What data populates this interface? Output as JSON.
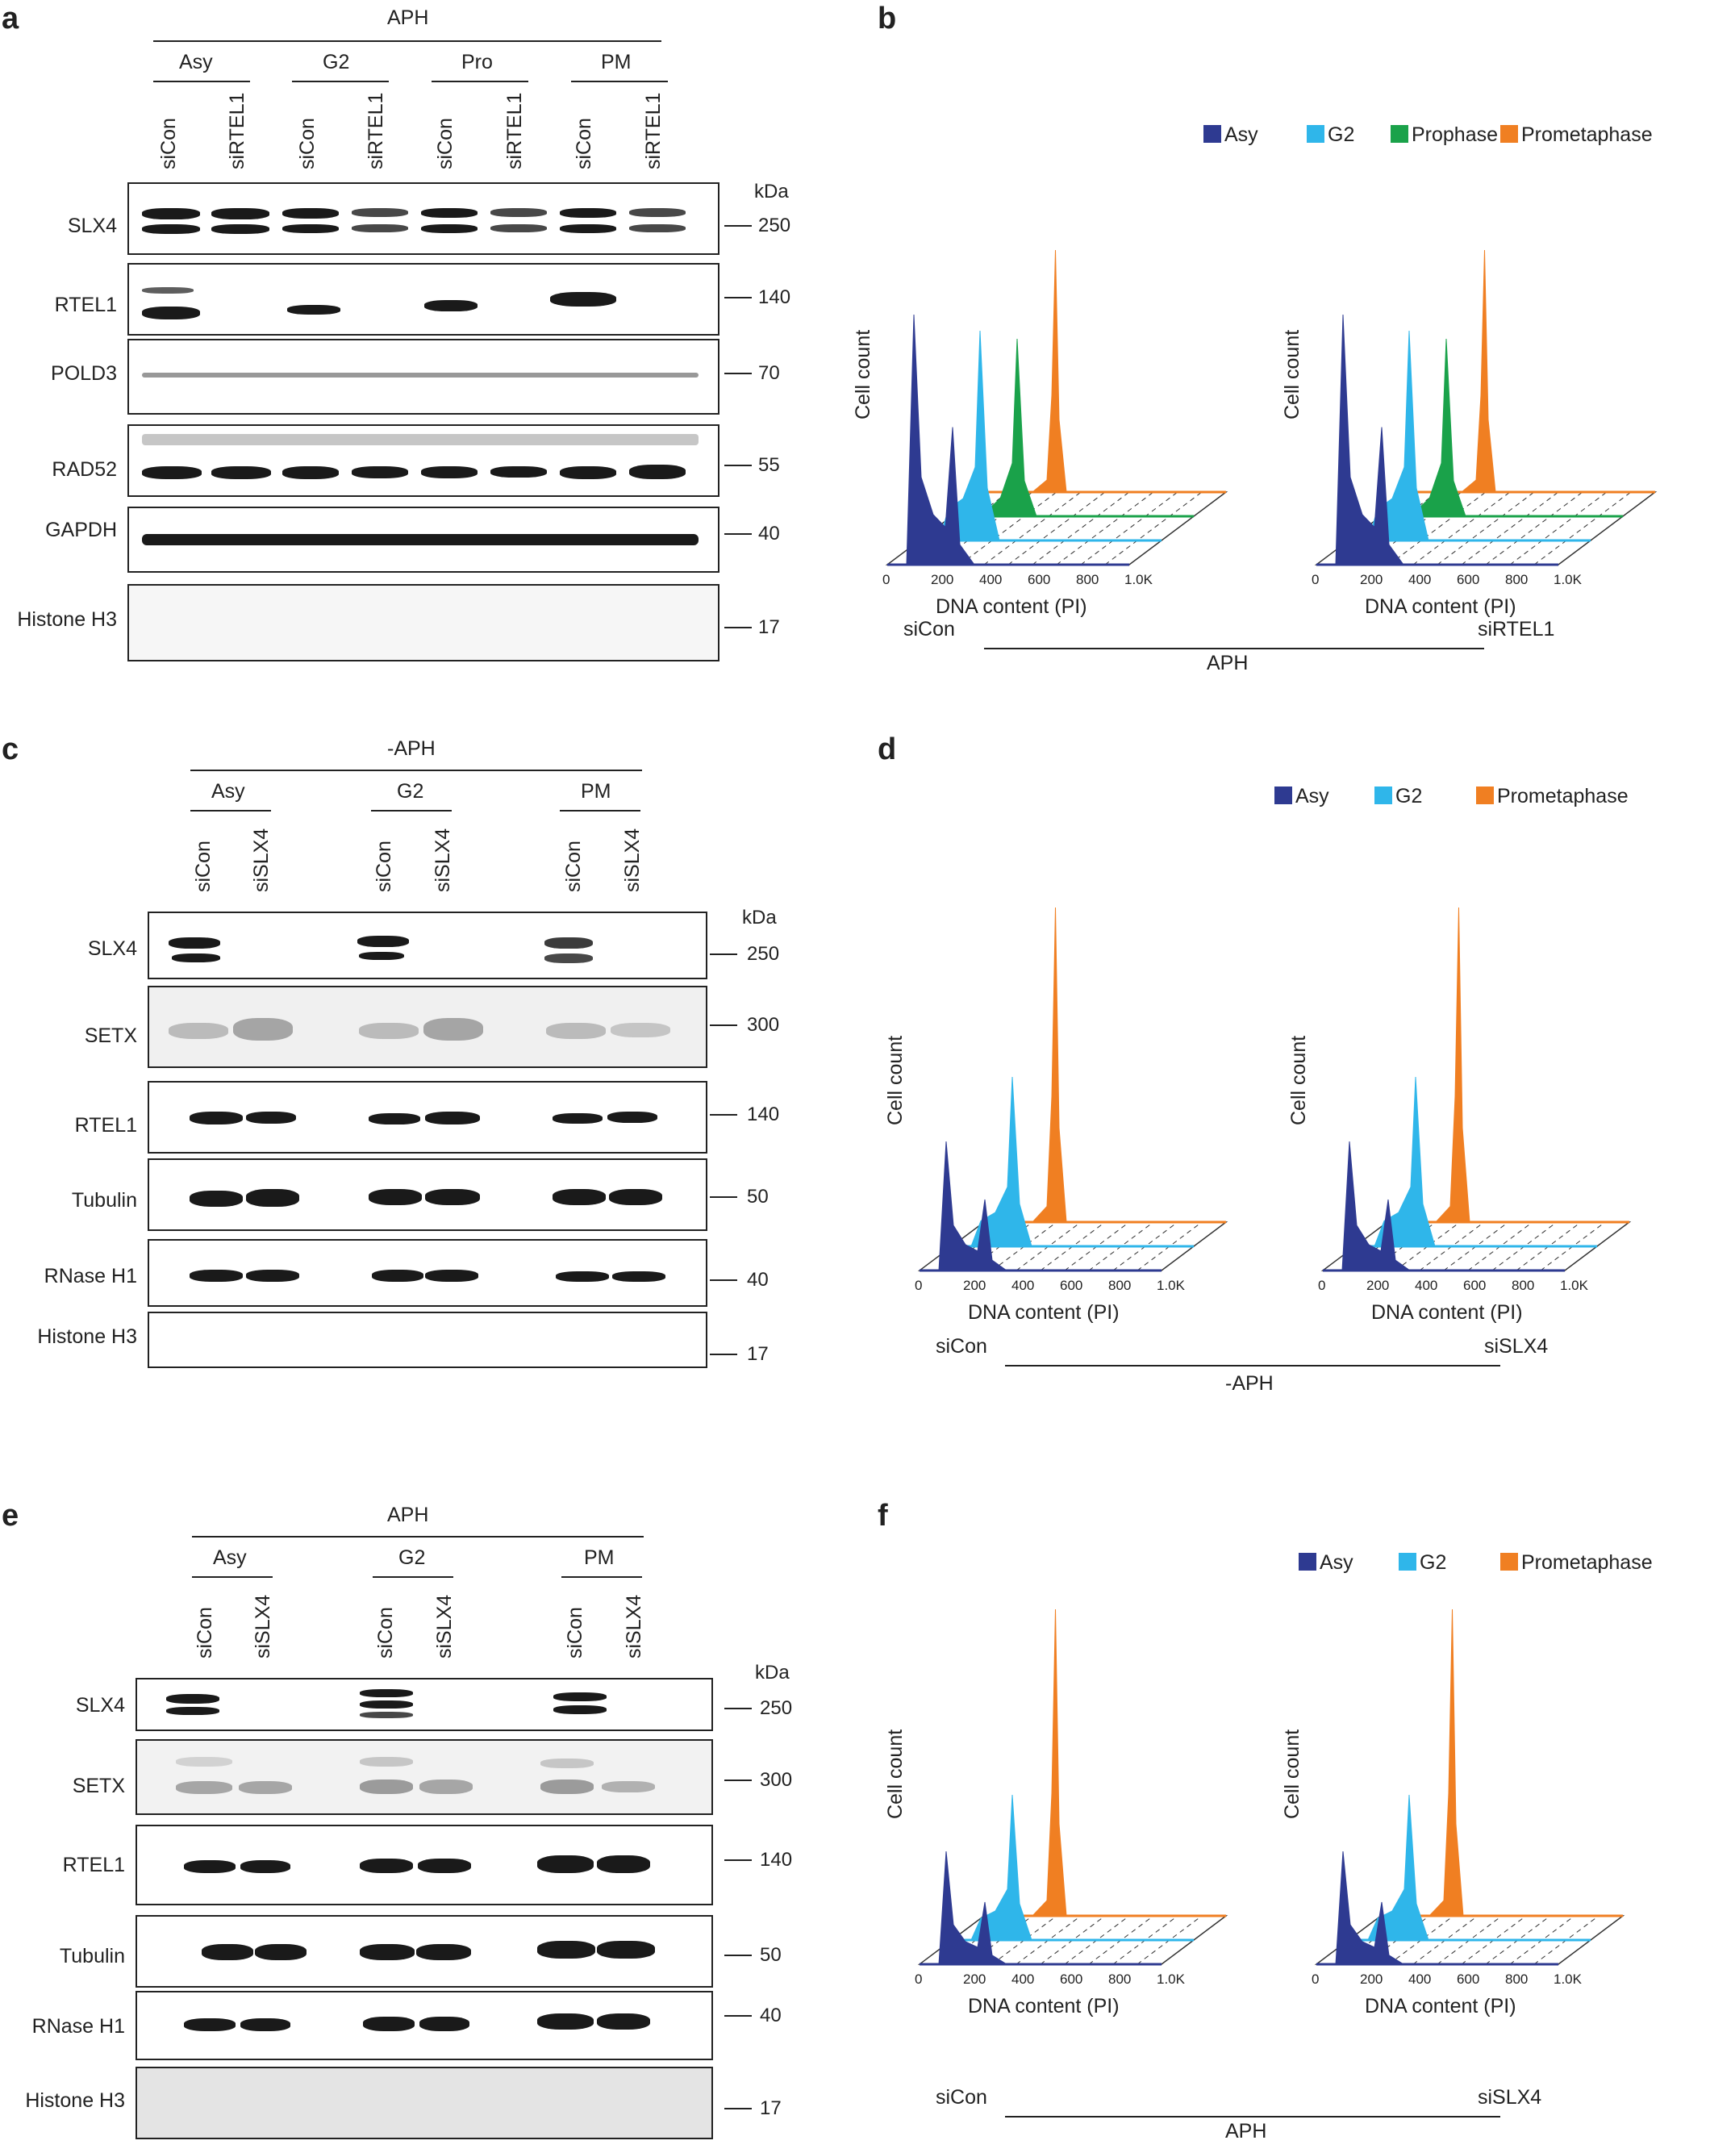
{
  "panels": [
    {
      "id": "a",
      "label": "a",
      "condition": "APH",
      "groups": [
        "Asy",
        "G2",
        "Pro",
        "PM"
      ],
      "lanes": [
        "siCon",
        "siRTEL1",
        "siCon",
        "siRTEL1",
        "siCon",
        "siRTEL1",
        "siCon",
        "siRTEL1"
      ],
      "kda_label": "kDa",
      "rows": [
        {
          "name": "SLX4",
          "kda": "250"
        },
        {
          "name": "RTEL1",
          "kda": "140"
        },
        {
          "name": "POLD3",
          "kda": "70"
        },
        {
          "name": "RAD52",
          "kda": "55"
        },
        {
          "name": "GAPDH",
          "kda": "40"
        },
        {
          "name": "Histone H3",
          "kda": "17"
        }
      ]
    },
    {
      "id": "c",
      "label": "c",
      "condition": "-APH",
      "groups": [
        "Asy",
        "G2",
        "PM"
      ],
      "lanes": [
        "siCon",
        "siSLX4",
        "siCon",
        "siSLX4",
        "siCon",
        "siSLX4"
      ],
      "kda_label": "kDa",
      "rows": [
        {
          "name": "SLX4",
          "kda": "250"
        },
        {
          "name": "SETX",
          "kda": "300"
        },
        {
          "name": "RTEL1",
          "kda": "140"
        },
        {
          "name": "Tubulin",
          "kda": "50"
        },
        {
          "name": "RNase H1",
          "kda": "40"
        },
        {
          "name": "Histone H3",
          "kda": "17"
        }
      ]
    },
    {
      "id": "e",
      "label": "e",
      "condition": "APH",
      "groups": [
        "Asy",
        "G2",
        "PM"
      ],
      "lanes": [
        "siCon",
        "siSLX4",
        "siCon",
        "siSLX4",
        "siCon",
        "siSLX4"
      ],
      "kda_label": "kDa",
      "rows": [
        {
          "name": "SLX4",
          "kda": "250"
        },
        {
          "name": "SETX",
          "kda": "300"
        },
        {
          "name": "RTEL1",
          "kda": "140"
        },
        {
          "name": "Tubulin",
          "kda": "50"
        },
        {
          "name": "RNase H1",
          "kda": "40"
        },
        {
          "name": "Histone H3",
          "kda": "17"
        }
      ]
    }
  ],
  "flow_panels": [
    {
      "id": "b",
      "label": "b",
      "condition": "APH",
      "samples": [
        "siCon",
        "siRTEL1"
      ],
      "legend": [
        "Asy",
        "G2",
        "Prophase",
        "Prometaphase"
      ]
    },
    {
      "id": "d",
      "label": "d",
      "condition": "-APH",
      "samples": [
        "siCon",
        "siSLX4"
      ],
      "legend": [
        "Asy",
        "G2",
        "Prometaphase"
      ]
    },
    {
      "id": "f",
      "label": "f",
      "condition": "APH",
      "samples": [
        "siCon",
        "siSLX4"
      ],
      "legend": [
        "Asy",
        "G2",
        "Prometaphase"
      ]
    }
  ],
  "axis": {
    "ylabel": "Cell count",
    "xlabel": "DNA content (PI)",
    "xticks": [
      "0",
      "200",
      "400",
      "600",
      "800",
      "1.0K"
    ]
  },
  "colors": {
    "Asy": "#2e3a91",
    "G2": "#2fb6ea",
    "Prophase": "#1aa24a",
    "Prometaphase": "#f07f22"
  },
  "chart_data": {
    "type": "area",
    "xlabel": "DNA content (PI)",
    "ylabel": "Cell count",
    "xticks": [
      "0",
      "200",
      "400",
      "600",
      "800",
      "1.0K"
    ],
    "series": [
      {
        "name": "Asy"
      },
      {
        "name": "G2"
      },
      {
        "name": "Prophase"
      },
      {
        "name": "Prometaphase"
      }
    ]
  }
}
